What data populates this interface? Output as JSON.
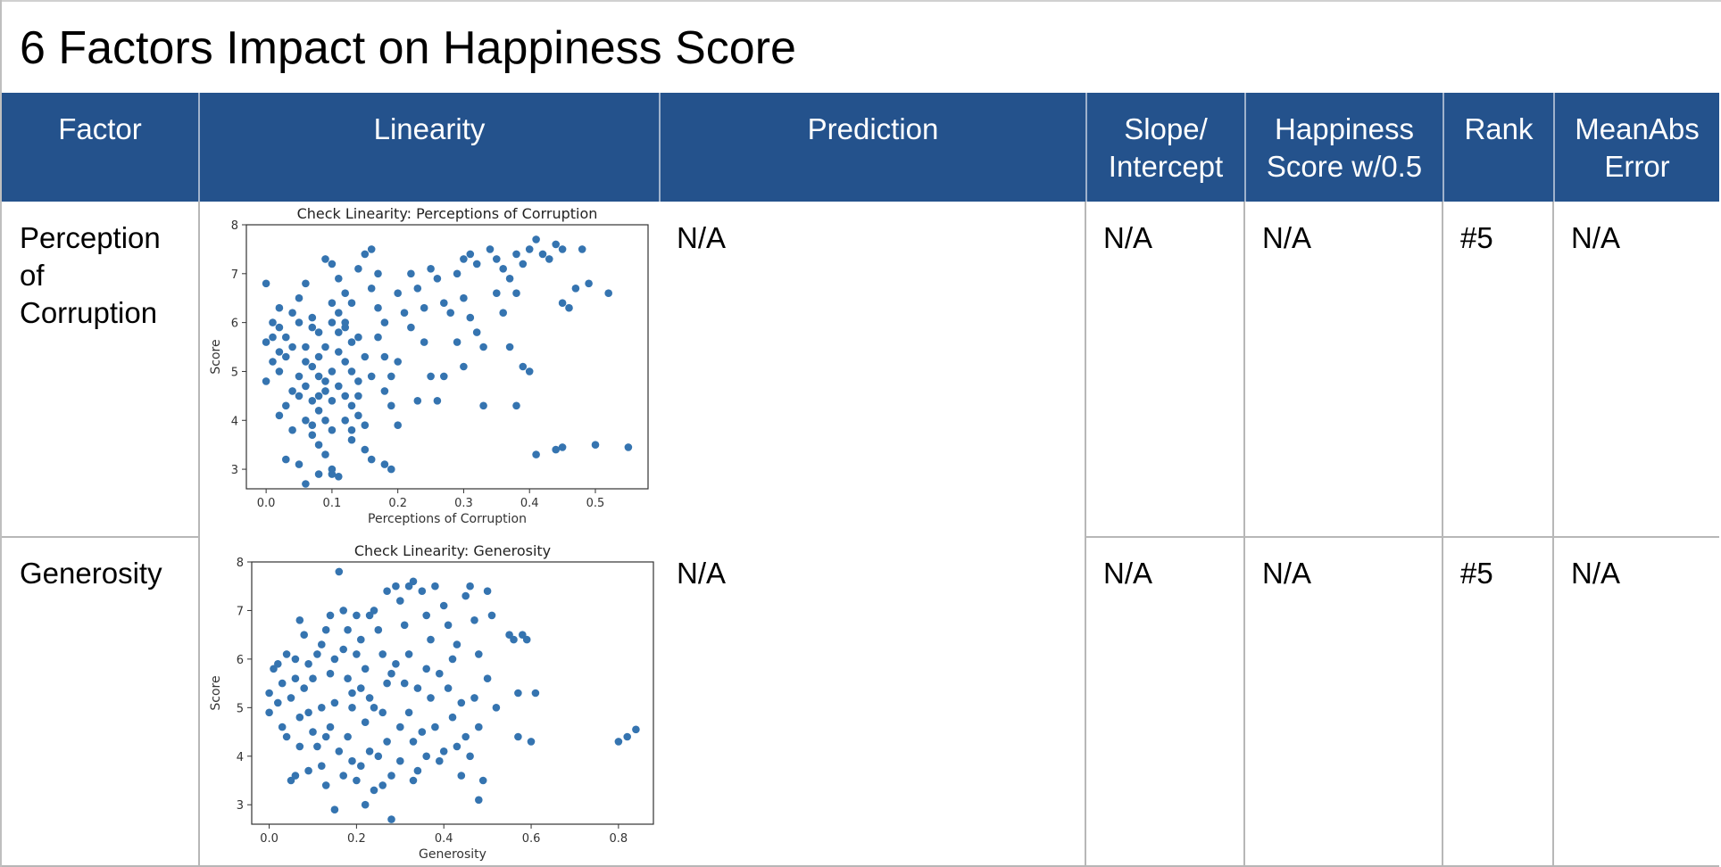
{
  "slide": {
    "title": "6 Factors Impact on Happiness Score"
  },
  "table": {
    "headers": {
      "factor": "Factor",
      "linearity": "Linearity",
      "prediction": "Prediction",
      "slope_line1": "Slope/",
      "slope_line2": "Intercept",
      "happiness_line1": "Happiness",
      "happiness_line2": "Score w/0.5",
      "rank": "Rank",
      "mae_line1": "MeanAbs",
      "mae_line2": "Error"
    },
    "rows": [
      {
        "factor_line1": "Perception",
        "factor_line2": "of",
        "factor_line3": "Corruption",
        "prediction": "N/A",
        "slope_intercept": "N/A",
        "happiness_score": "N/A",
        "rank": "#5",
        "mean_abs_error": "N/A"
      },
      {
        "factor_line1": "Generosity",
        "prediction": "N/A",
        "slope_intercept": "N/A",
        "happiness_score": "N/A",
        "rank": "#5",
        "mean_abs_error": "N/A"
      }
    ]
  },
  "colors": {
    "header_bg": "#24528c",
    "point": "#3574b0"
  },
  "chart_data": [
    {
      "type": "scatter",
      "title": "Check Linearity: Perceptions of Corruption",
      "xlabel": "Perceptions of Corruption",
      "ylabel": "Score",
      "xlim": [
        -0.03,
        0.58
      ],
      "ylim": [
        2.6,
        8.0
      ],
      "xticks": [
        0.0,
        0.1,
        0.2,
        0.3,
        0.4,
        0.5
      ],
      "xtick_labels": [
        "0.0",
        "0.1",
        "0.2",
        "0.3",
        "0.4",
        "0.5"
      ],
      "yticks": [
        3,
        4,
        5,
        6,
        7,
        8
      ],
      "ytick_labels": [
        "3",
        "4",
        "5",
        "6",
        "7",
        "8"
      ],
      "grid": false,
      "points": [
        [
          0.0,
          6.8
        ],
        [
          0.01,
          6.0
        ],
        [
          0.02,
          5.9
        ],
        [
          0.0,
          5.6
        ],
        [
          0.01,
          5.2
        ],
        [
          0.02,
          5.0
        ],
        [
          0.0,
          4.8
        ],
        [
          0.03,
          4.3
        ],
        [
          0.02,
          4.1
        ],
        [
          0.04,
          3.8
        ],
        [
          0.03,
          3.2
        ],
        [
          0.05,
          3.1
        ],
        [
          0.06,
          2.7
        ],
        [
          0.04,
          6.2
        ],
        [
          0.05,
          6.5
        ],
        [
          0.06,
          6.8
        ],
        [
          0.07,
          6.1
        ],
        [
          0.08,
          5.8
        ],
        [
          0.06,
          5.5
        ],
        [
          0.07,
          5.1
        ],
        [
          0.08,
          4.9
        ],
        [
          0.09,
          4.6
        ],
        [
          0.07,
          4.4
        ],
        [
          0.08,
          4.2
        ],
        [
          0.09,
          4.0
        ],
        [
          0.1,
          3.8
        ],
        [
          0.08,
          3.5
        ],
        [
          0.09,
          3.3
        ],
        [
          0.1,
          3.0
        ],
        [
          0.08,
          2.9
        ],
        [
          0.1,
          2.9
        ],
        [
          0.11,
          2.85
        ],
        [
          0.09,
          7.3
        ],
        [
          0.1,
          7.2
        ],
        [
          0.11,
          6.9
        ],
        [
          0.12,
          6.6
        ],
        [
          0.1,
          6.4
        ],
        [
          0.11,
          6.2
        ],
        [
          0.12,
          5.9
        ],
        [
          0.13,
          5.6
        ],
        [
          0.11,
          5.4
        ],
        [
          0.12,
          5.2
        ],
        [
          0.13,
          5.0
        ],
        [
          0.14,
          4.8
        ],
        [
          0.12,
          4.5
        ],
        [
          0.13,
          4.3
        ],
        [
          0.14,
          4.1
        ],
        [
          0.15,
          3.9
        ],
        [
          0.13,
          3.6
        ],
        [
          0.15,
          3.4
        ],
        [
          0.16,
          3.2
        ],
        [
          0.14,
          7.1
        ],
        [
          0.15,
          7.4
        ],
        [
          0.16,
          7.5
        ],
        [
          0.17,
          7.0
        ],
        [
          0.16,
          6.7
        ],
        [
          0.17,
          6.3
        ],
        [
          0.18,
          6.0
        ],
        [
          0.17,
          5.7
        ],
        [
          0.18,
          5.3
        ],
        [
          0.19,
          4.9
        ],
        [
          0.18,
          4.6
        ],
        [
          0.19,
          4.3
        ],
        [
          0.2,
          3.9
        ],
        [
          0.18,
          3.1
        ],
        [
          0.19,
          3.0
        ],
        [
          0.22,
          7.0
        ],
        [
          0.23,
          6.7
        ],
        [
          0.24,
          6.3
        ],
        [
          0.22,
          5.9
        ],
        [
          0.25,
          7.1
        ],
        [
          0.26,
          6.9
        ],
        [
          0.27,
          6.4
        ],
        [
          0.25,
          4.9
        ],
        [
          0.26,
          4.4
        ],
        [
          0.27,
          4.9
        ],
        [
          0.29,
          7.0
        ],
        [
          0.3,
          7.3
        ],
        [
          0.31,
          7.4
        ],
        [
          0.32,
          7.2
        ],
        [
          0.3,
          6.5
        ],
        [
          0.31,
          6.1
        ],
        [
          0.32,
          5.8
        ],
        [
          0.33,
          5.5
        ],
        [
          0.29,
          5.6
        ],
        [
          0.3,
          5.1
        ],
        [
          0.33,
          4.3
        ],
        [
          0.34,
          7.5
        ],
        [
          0.35,
          7.3
        ],
        [
          0.36,
          7.1
        ],
        [
          0.37,
          6.9
        ],
        [
          0.38,
          7.4
        ],
        [
          0.39,
          7.2
        ],
        [
          0.4,
          7.5
        ],
        [
          0.41,
          7.7
        ],
        [
          0.42,
          7.4
        ],
        [
          0.43,
          7.3
        ],
        [
          0.44,
          7.6
        ],
        [
          0.45,
          7.5
        ],
        [
          0.38,
          6.6
        ],
        [
          0.39,
          5.1
        ],
        [
          0.37,
          5.5
        ],
        [
          0.4,
          5.0
        ],
        [
          0.38,
          4.3
        ],
        [
          0.45,
          6.4
        ],
        [
          0.46,
          6.3
        ],
        [
          0.47,
          6.7
        ],
        [
          0.49,
          6.8
        ],
        [
          0.48,
          7.5
        ],
        [
          0.52,
          6.6
        ],
        [
          0.41,
          3.3
        ],
        [
          0.44,
          3.4
        ],
        [
          0.45,
          3.45
        ],
        [
          0.5,
          3.5
        ],
        [
          0.55,
          3.45
        ],
        [
          0.02,
          5.4
        ],
        [
          0.03,
          5.7
        ],
        [
          0.04,
          4.6
        ],
        [
          0.05,
          4.9
        ],
        [
          0.06,
          5.2
        ],
        [
          0.07,
          5.9
        ],
        [
          0.05,
          6.0
        ],
        [
          0.06,
          4.0
        ],
        [
          0.07,
          3.7
        ],
        [
          0.09,
          5.5
        ],
        [
          0.1,
          5.0
        ],
        [
          0.11,
          4.7
        ],
        [
          0.1,
          4.4
        ],
        [
          0.09,
          4.8
        ],
        [
          0.08,
          5.3
        ],
        [
          0.12,
          6.0
        ],
        [
          0.13,
          6.4
        ],
        [
          0.14,
          5.7
        ],
        [
          0.15,
          5.3
        ],
        [
          0.16,
          4.9
        ],
        [
          0.14,
          4.5
        ],
        [
          0.01,
          5.7
        ],
        [
          0.02,
          6.3
        ],
        [
          0.03,
          5.3
        ],
        [
          0.04,
          5.5
        ],
        [
          0.05,
          4.5
        ],
        [
          0.06,
          4.7
        ],
        [
          0.07,
          3.9
        ],
        [
          0.08,
          4.5
        ],
        [
          0.1,
          6.0
        ],
        [
          0.11,
          5.8
        ],
        [
          0.12,
          4.0
        ],
        [
          0.13,
          3.8
        ],
        [
          0.2,
          6.6
        ],
        [
          0.21,
          6.2
        ],
        [
          0.2,
          5.2
        ],
        [
          0.23,
          4.4
        ],
        [
          0.28,
          6.2
        ],
        [
          0.24,
          5.6
        ],
        [
          0.35,
          6.6
        ],
        [
          0.36,
          6.2
        ]
      ]
    },
    {
      "type": "scatter",
      "title": "Check Linearity: Generosity",
      "xlabel": "Generosity",
      "ylabel": "Score",
      "xlim": [
        -0.04,
        0.88
      ],
      "ylim": [
        2.6,
        8.0
      ],
      "xticks": [
        0.0,
        0.2,
        0.4,
        0.6,
        0.8
      ],
      "xtick_labels": [
        "0.0",
        "0.2",
        "0.4",
        "0.6",
        "0.8"
      ],
      "yticks": [
        3,
        4,
        5,
        6,
        7,
        8
      ],
      "ytick_labels": [
        "3",
        "4",
        "5",
        "6",
        "7",
        "8"
      ],
      "grid": false,
      "points": [
        [
          0.0,
          5.3
        ],
        [
          0.0,
          4.9
        ],
        [
          0.01,
          5.8
        ],
        [
          0.02,
          5.9
        ],
        [
          0.03,
          5.5
        ],
        [
          0.03,
          4.6
        ],
        [
          0.04,
          4.4
        ],
        [
          0.05,
          3.5
        ],
        [
          0.06,
          3.6
        ],
        [
          0.05,
          5.2
        ],
        [
          0.06,
          6.0
        ],
        [
          0.07,
          6.8
        ],
        [
          0.08,
          6.5
        ],
        [
          0.09,
          5.9
        ],
        [
          0.08,
          5.4
        ],
        [
          0.09,
          4.9
        ],
        [
          0.1,
          4.5
        ],
        [
          0.11,
          4.2
        ],
        [
          0.12,
          3.8
        ],
        [
          0.13,
          3.4
        ],
        [
          0.12,
          6.3
        ],
        [
          0.13,
          6.6
        ],
        [
          0.14,
          5.7
        ],
        [
          0.15,
          5.1
        ],
        [
          0.15,
          2.9
        ],
        [
          0.16,
          7.8
        ],
        [
          0.17,
          6.2
        ],
        [
          0.18,
          5.6
        ],
        [
          0.19,
          5.0
        ],
        [
          0.18,
          4.4
        ],
        [
          0.19,
          3.9
        ],
        [
          0.2,
          3.5
        ],
        [
          0.2,
          6.9
        ],
        [
          0.21,
          6.4
        ],
        [
          0.22,
          5.8
        ],
        [
          0.23,
          5.2
        ],
        [
          0.22,
          4.7
        ],
        [
          0.23,
          4.1
        ],
        [
          0.24,
          3.3
        ],
        [
          0.24,
          7.0
        ],
        [
          0.25,
          6.6
        ],
        [
          0.26,
          6.1
        ],
        [
          0.27,
          5.5
        ],
        [
          0.26,
          4.9
        ],
        [
          0.27,
          4.3
        ],
        [
          0.28,
          3.6
        ],
        [
          0.28,
          2.7
        ],
        [
          0.29,
          7.5
        ],
        [
          0.3,
          7.2
        ],
        [
          0.31,
          6.7
        ],
        [
          0.32,
          6.1
        ],
        [
          0.31,
          5.5
        ],
        [
          0.32,
          4.9
        ],
        [
          0.33,
          4.3
        ],
        [
          0.34,
          3.7
        ],
        [
          0.33,
          7.6
        ],
        [
          0.35,
          7.4
        ],
        [
          0.36,
          6.9
        ],
        [
          0.37,
          6.4
        ],
        [
          0.36,
          5.8
        ],
        [
          0.37,
          5.2
        ],
        [
          0.38,
          4.6
        ],
        [
          0.39,
          3.9
        ],
        [
          0.38,
          7.5
        ],
        [
          0.4,
          7.1
        ],
        [
          0.41,
          6.7
        ],
        [
          0.42,
          6.0
        ],
        [
          0.41,
          5.4
        ],
        [
          0.42,
          4.8
        ],
        [
          0.43,
          4.2
        ],
        [
          0.44,
          3.6
        ],
        [
          0.45,
          7.3
        ],
        [
          0.46,
          7.5
        ],
        [
          0.47,
          6.8
        ],
        [
          0.48,
          6.1
        ],
        [
          0.47,
          5.2
        ],
        [
          0.48,
          4.6
        ],
        [
          0.49,
          3.5
        ],
        [
          0.48,
          3.1
        ],
        [
          0.5,
          7.4
        ],
        [
          0.51,
          6.9
        ],
        [
          0.5,
          5.6
        ],
        [
          0.52,
          5.0
        ],
        [
          0.55,
          6.5
        ],
        [
          0.56,
          6.4
        ],
        [
          0.57,
          5.3
        ],
        [
          0.58,
          6.5
        ],
        [
          0.59,
          6.4
        ],
        [
          0.57,
          4.4
        ],
        [
          0.6,
          4.3
        ],
        [
          0.61,
          5.3
        ],
        [
          0.8,
          4.3
        ],
        [
          0.82,
          4.4
        ],
        [
          0.84,
          4.55
        ],
        [
          0.02,
          5.1
        ],
        [
          0.04,
          6.1
        ],
        [
          0.07,
          4.8
        ],
        [
          0.1,
          5.6
        ],
        [
          0.11,
          6.1
        ],
        [
          0.14,
          4.6
        ],
        [
          0.16,
          4.1
        ],
        [
          0.17,
          3.6
        ],
        [
          0.2,
          6.1
        ],
        [
          0.21,
          5.4
        ],
        [
          0.24,
          5.0
        ],
        [
          0.25,
          4.0
        ],
        [
          0.29,
          5.9
        ],
        [
          0.3,
          4.6
        ],
        [
          0.34,
          5.4
        ],
        [
          0.35,
          4.5
        ],
        [
          0.39,
          5.7
        ],
        [
          0.43,
          6.3
        ],
        [
          0.44,
          5.1
        ],
        [
          0.46,
          4.0
        ],
        [
          0.12,
          5.0
        ],
        [
          0.13,
          4.4
        ],
        [
          0.15,
          6.0
        ],
        [
          0.18,
          6.6
        ],
        [
          0.19,
          5.3
        ],
        [
          0.21,
          3.8
        ],
        [
          0.22,
          3.0
        ],
        [
          0.26,
          3.4
        ],
        [
          0.28,
          5.7
        ],
        [
          0.3,
          3.9
        ],
        [
          0.33,
          3.5
        ],
        [
          0.36,
          4.0
        ],
        [
          0.4,
          4.1
        ],
        [
          0.45,
          4.4
        ],
        [
          0.09,
          3.7
        ],
        [
          0.07,
          4.2
        ],
        [
          0.06,
          5.6
        ],
        [
          0.14,
          6.9
        ],
        [
          0.17,
          7.0
        ],
        [
          0.23,
          6.9
        ],
        [
          0.27,
          7.4
        ],
        [
          0.32,
          7.5
        ]
      ]
    }
  ]
}
